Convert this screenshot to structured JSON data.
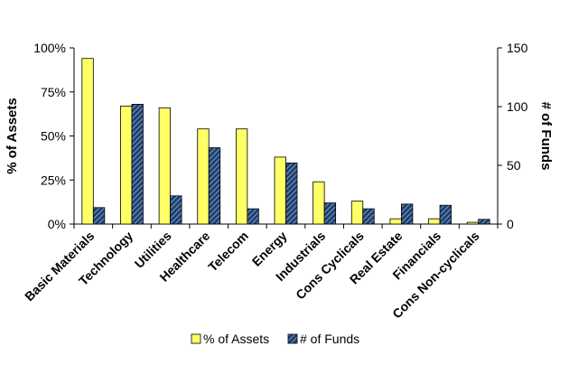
{
  "chart_data": {
    "type": "bar",
    "categories": [
      "Basic Materials",
      "Technology",
      "Utilities",
      "Healthcare",
      "Telecom",
      "Energy",
      "Industrials",
      "Cons Cyclicals",
      "Real Estate",
      "Financials",
      "Cons Non-cyclicals"
    ],
    "series": [
      {
        "name": "% of Assets",
        "axis": "left",
        "values": [
          94,
          67,
          66,
          54,
          54,
          38,
          24,
          13,
          3,
          3,
          1
        ],
        "color": "#ffff66"
      },
      {
        "name": "# of Funds",
        "axis": "right",
        "values": [
          14,
          102,
          24,
          65,
          13,
          52,
          18,
          13,
          17,
          16,
          4
        ],
        "color": "#1f3f6e"
      }
    ],
    "ylabel": "% of Assets",
    "ylabel_right": "# of Funds",
    "ylim": [
      0,
      100
    ],
    "ylim_right": [
      0,
      150
    ],
    "yticks": [
      "0%",
      "25%",
      "50%",
      "75%",
      "100%"
    ],
    "yticks_right": [
      "0",
      "50",
      "100",
      "150"
    ],
    "legend": "bottom",
    "grid": false
  }
}
